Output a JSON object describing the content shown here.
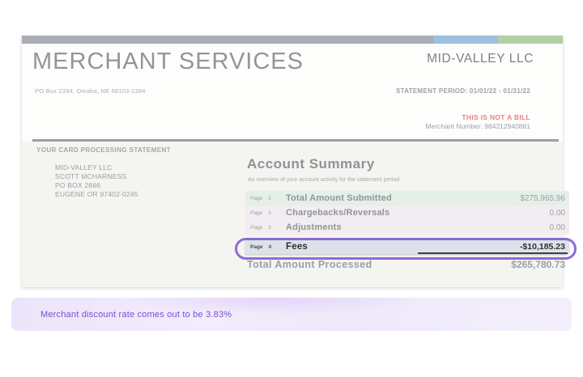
{
  "document": {
    "header": {
      "title": "MERCHANT SERVICES",
      "po_box": "PO Box 2394, Omaha, NE 68103-2394",
      "company": "MID-VALLEY LLC",
      "statement_period": "STATEMENT PERIOD: 01/01/22 - 01/31/22",
      "not_a_bill": "THIS IS NOT A BILL",
      "merchant_number": "Merchant Number: 984212940881"
    },
    "statement_label": "YOUR CARD PROCESSING STATEMENT",
    "mailing_address": [
      "MID-VALLEY LLC",
      "SCOTT MCHARNESS",
      "PO BOX 2666",
      "EUGENE OR 97402-0245"
    ],
    "account_summary": {
      "title": "Account Summary",
      "subtitle": "An overview of your account activity for the statement period.",
      "rows": [
        {
          "page": "Page",
          "page_num": "2",
          "label": "Total Amount Submitted",
          "amount": "$275,965.96"
        },
        {
          "page": "Page",
          "page_num": "3",
          "label": "Chargebacks/Reversals",
          "amount": "0.00"
        },
        {
          "page": "Page",
          "page_num": "3",
          "label": "Adjustments",
          "amount": "0.00"
        },
        {
          "page": "Page",
          "page_num": "4",
          "label": "Fees",
          "amount": "-$10,185.23"
        }
      ],
      "total": {
        "label": "Total Amount Processed",
        "amount": "$265,780.73"
      }
    }
  },
  "annotation": {
    "note": "Merchant discount rate comes out to be 3.83%"
  },
  "colors": {
    "highlight_purple": "#7D58D4",
    "not_a_bill_red": "#E7827F",
    "banner_bg": "#F0EAFB",
    "banner_text": "#7A4FD0",
    "row_submitted_bg": "#E4EFE8",
    "row_neutral_bg": "#F2EDF1",
    "row_fees_bg": "#DDE2E8",
    "topbar_gray": "#A9AEB4",
    "topbar_blue": "#9CC0DE",
    "topbar_green": "#B2CFA6"
  }
}
